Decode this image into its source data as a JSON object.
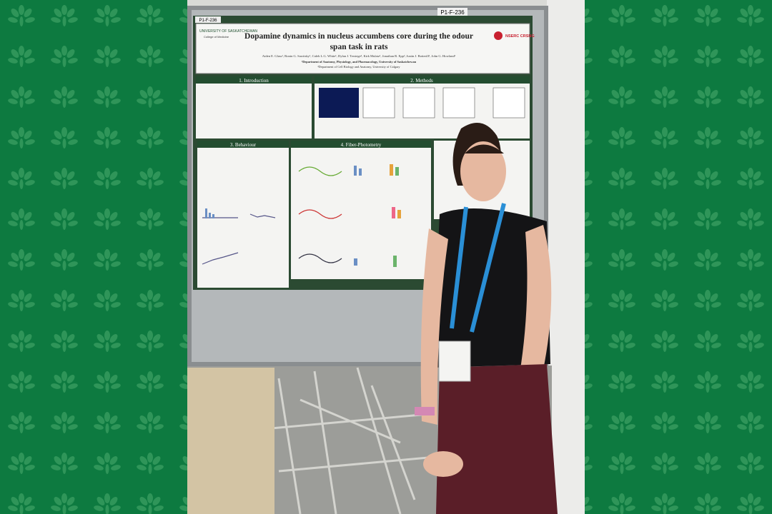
{
  "poster": {
    "board_label": "P1-F-236",
    "corner_label": "P1-F-236",
    "university": "UNIVERSITY OF SASKATCHEWAN",
    "college": "College of Medicine",
    "funder": "NSERC CRSNG",
    "title_line1": "Dopamine dynamics in nucleus accumbens core during the odour",
    "title_line2": "span task in rats",
    "authors": "Aiden E. Glass¹, Ronin G. Sawitsky¹, Caleb L.G. White¹, Dylan J. Terstege², Kirk Mulatz¹, Jonathan R. Epp², Justin J. Botterill¹, John G. Howland¹",
    "affiliation1": "¹Department of Anatomy, Physiology, and Pharmacology, University of Saskatchewan",
    "affiliation2": "²Department of Cell Biology and Anatomy, University of Calgary",
    "sections": [
      "1. Introduction",
      "2. Methods",
      "3. Behaviour",
      "4. Fiber-Photometry"
    ]
  }
}
